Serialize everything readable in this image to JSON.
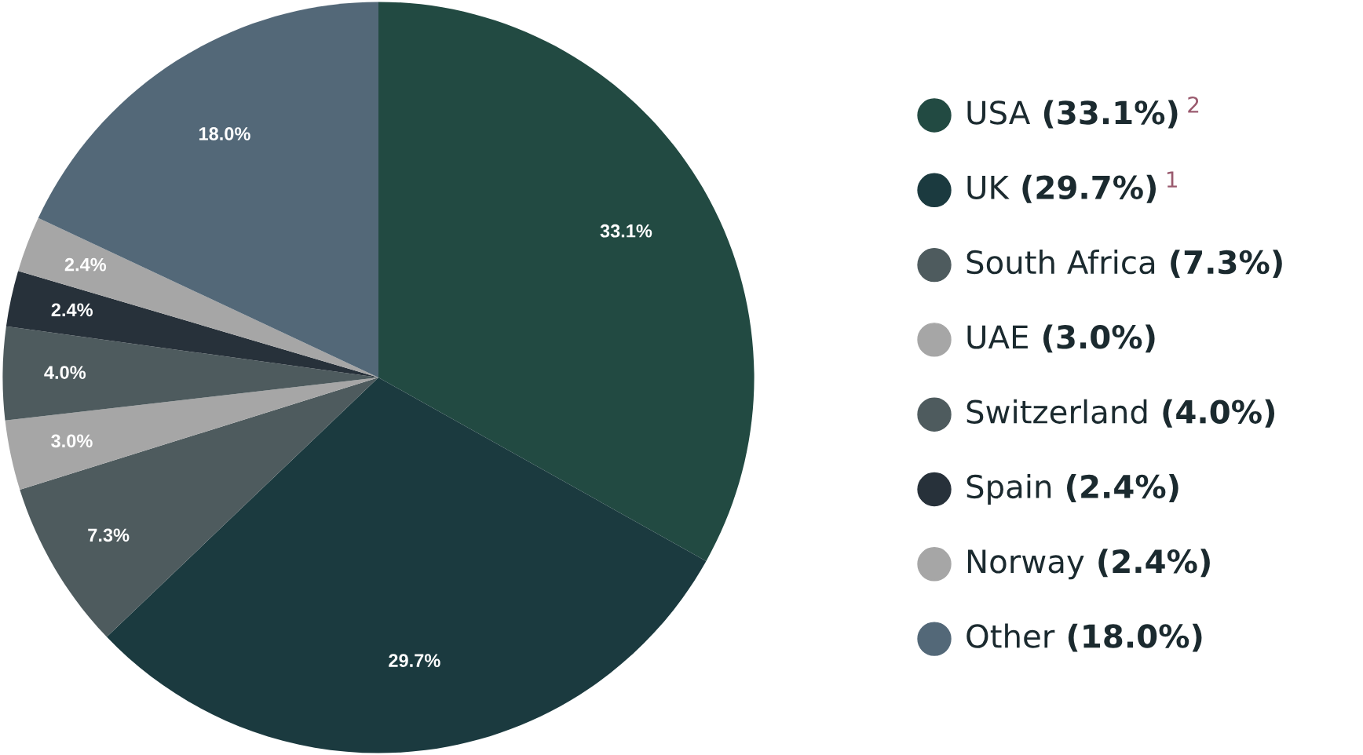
{
  "chart_data": {
    "type": "pie",
    "categories": [
      "USA (33.1%)",
      "UK (29.7%)",
      "South Africa (7.3%)",
      "UAE (3.0%)",
      "Switzerland (4.0%)",
      "Spain (2.4%)",
      "Norway (2.4%)",
      "Other (18.0%)"
    ],
    "value_labels": [
      "33.1%",
      "29.7%",
      "7.3%",
      "3.0%",
      "4.0%",
      "2.4%",
      "2.4%",
      "18.0%"
    ],
    "values": [
      33.1,
      29.7,
      7.3,
      3.0,
      4.0,
      2.4,
      2.4,
      18.0
    ],
    "colors": [
      "#224a42",
      "#1b3a3f",
      "#4e5b5e",
      "#a6a6a6",
      "#4e5b5e",
      "#27313a",
      "#a6a6a6",
      "#536878"
    ],
    "legend": "right",
    "annotations": [
      {
        "text": "2",
        "x": "USA (33.1%)"
      },
      {
        "text": "1",
        "x": "UK (29.7%)"
      }
    ]
  }
}
